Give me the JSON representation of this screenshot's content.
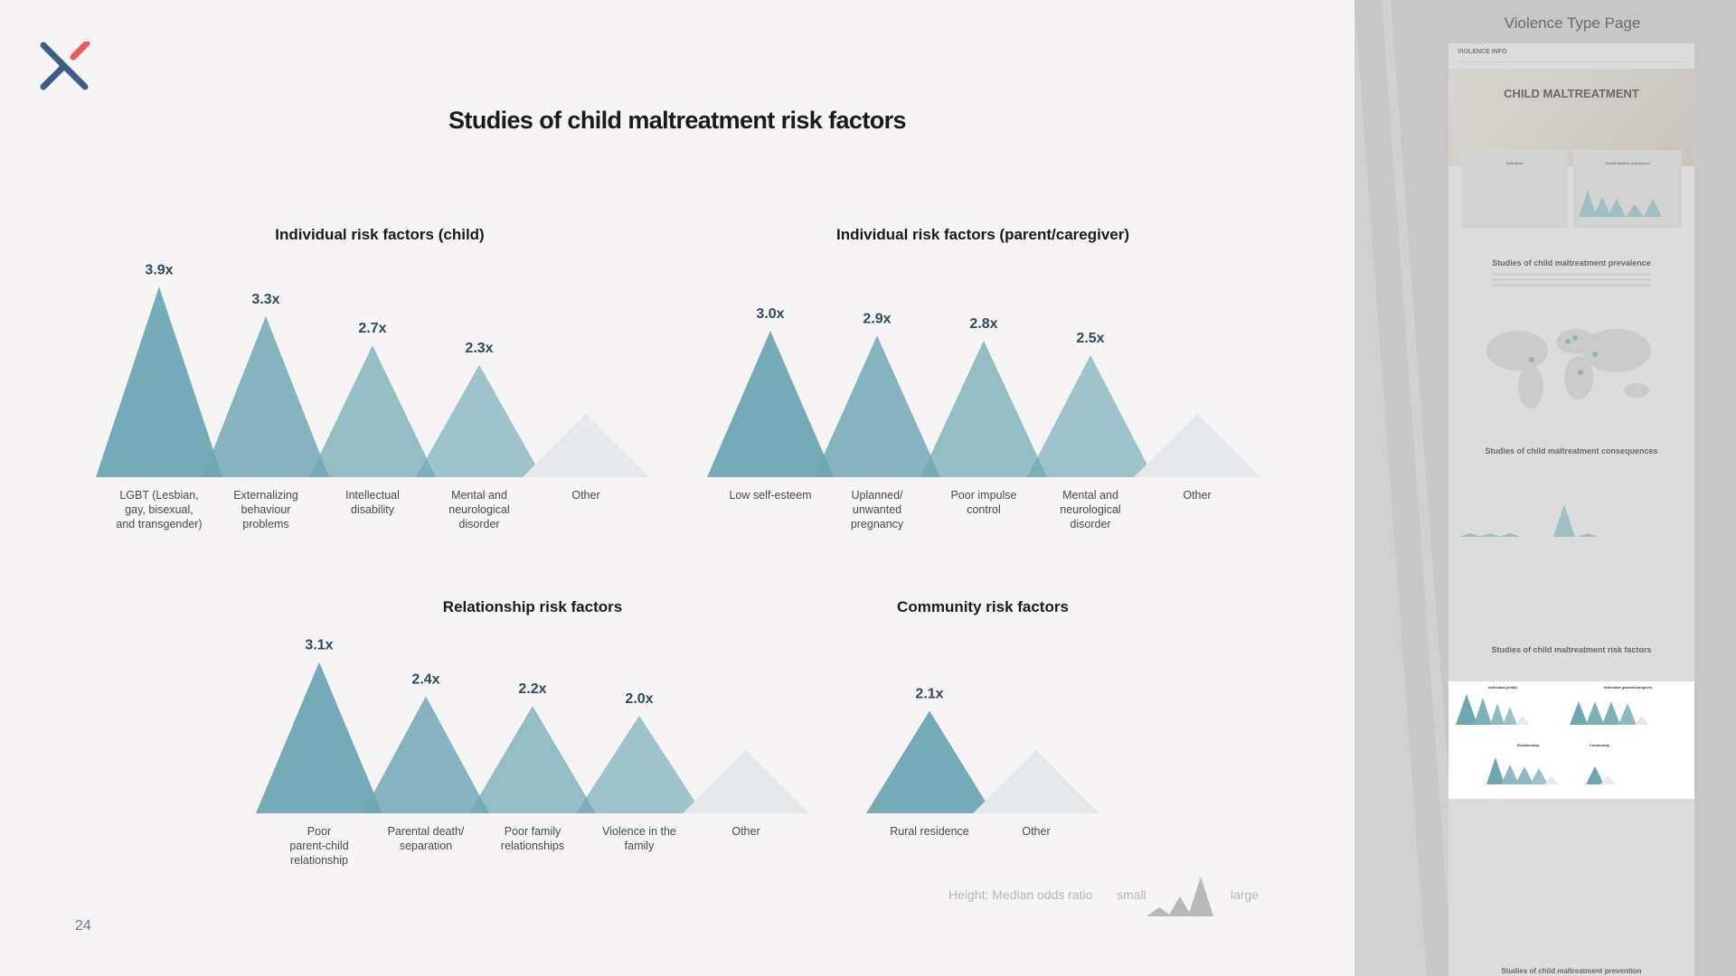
{
  "slide": {
    "title": "Studies of child maltreatment risk factors",
    "page_number": "24",
    "legend": {
      "caption": "Height: Median odds ratio",
      "small": "small",
      "large": "large"
    },
    "colors": {
      "primary": "#6ea7b2",
      "fade": "#e6e9ec",
      "value_label": "#2b4b5c",
      "logo_blue": "#3c5f86",
      "logo_red": "#e85a5a"
    }
  },
  "chart_data": [
    {
      "type": "triangle",
      "title": "Individual risk factors (child)",
      "categories": [
        "LGBT (Lesbian, gay, bisexual, and transgender)",
        "Externalizing behaviour problems",
        "Intellectual disability",
        "Mental and neurological disorder",
        "Other"
      ],
      "values": [
        3.9,
        3.3,
        2.7,
        2.3,
        null
      ],
      "value_labels": [
        "3.9x",
        "3.3x",
        "2.7x",
        "2.3x",
        ""
      ]
    },
    {
      "type": "triangle",
      "title": "Individual risk factors (parent/caregiver)",
      "categories": [
        "Low self-esteem",
        "Uplanned/ unwanted pregnancy",
        "Poor impulse control",
        "Mental and neurological disorder",
        "Other"
      ],
      "values": [
        3.0,
        2.9,
        2.8,
        2.5,
        null
      ],
      "value_labels": [
        "3.0x",
        "2.9x",
        "2.8x",
        "2.5x",
        ""
      ]
    },
    {
      "type": "triangle",
      "title": "Relationship risk factors",
      "categories": [
        "Poor parent-child relationship",
        "Parental death/ separation",
        "Poor family relationships",
        "Violence in the family",
        "Other"
      ],
      "values": [
        3.1,
        2.4,
        2.2,
        2.0,
        null
      ],
      "value_labels": [
        "3.1x",
        "2.4x",
        "2.2x",
        "2.0x",
        ""
      ]
    },
    {
      "type": "triangle",
      "title": "Community risk factors",
      "categories": [
        "Rural residence",
        "Other"
      ],
      "values": [
        2.1,
        null
      ],
      "value_labels": [
        "2.1x",
        ""
      ]
    }
  ],
  "side_panel": {
    "title": "Violence Type Page",
    "thumbnail": {
      "site_name": "VIOLENCE INFO",
      "hero_title": "CHILD MALTREATMENT",
      "section_definition": "Definition",
      "section_prevalence_small": "Global lifetime prevalence",
      "section_prevalence": "Studies of child maltreatment prevalence",
      "section_consequences": "Studies of child maltreatment consequences",
      "section_risk": "Studies of child maltreatment risk factors",
      "section_prevention": "Studies of child maltreatment prevention",
      "mini_individual_child": "Individual (child)",
      "mini_individual_parent": "Individual (parent/caregiver)",
      "mini_relationship": "Relationship",
      "mini_community": "Community"
    }
  }
}
